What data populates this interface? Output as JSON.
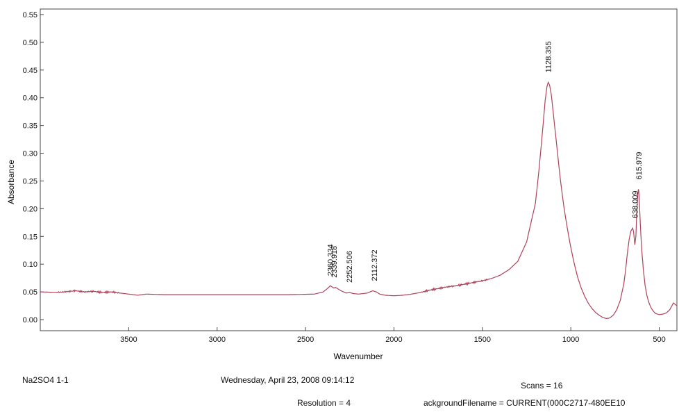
{
  "chart_data": {
    "type": "line",
    "title": "",
    "xlabel": "Wavenumber",
    "ylabel": "Absorbance",
    "xlim": [
      4000,
      400
    ],
    "ylim": [
      -0.02,
      0.56
    ],
    "x_ticks": [
      3500,
      3000,
      2500,
      2000,
      1500,
      1000,
      500
    ],
    "y_ticks": [
      "0.00",
      "0.05",
      "0.10",
      "0.15",
      "0.20",
      "0.25",
      "0.30",
      "0.35",
      "0.40",
      "0.45",
      "0.50",
      "0.55"
    ],
    "grid": false,
    "line_color": "#b0405a",
    "series": [
      {
        "x": [
          4000,
          3900,
          3800,
          3750,
          3700,
          3650,
          3600,
          3550,
          3500,
          3450,
          3400,
          3300,
          3200,
          3000,
          2800,
          2600,
          2450,
          2400,
          2380,
          2360,
          2340,
          2330,
          2300,
          2270,
          2252,
          2230,
          2200,
          2150,
          2120,
          2100,
          2080,
          2050,
          2000,
          1950,
          1900,
          1850,
          1800,
          1750,
          1700,
          1650,
          1600,
          1550,
          1500,
          1450,
          1400,
          1350,
          1300,
          1250,
          1200,
          1180,
          1160,
          1145,
          1135,
          1128,
          1120,
          1110,
          1100,
          1080,
          1060,
          1040,
          1020,
          1000,
          980,
          960,
          940,
          920,
          900,
          880,
          860,
          840,
          820,
          800,
          780,
          760,
          740,
          720,
          700,
          690,
          680,
          670,
          660,
          650,
          645,
          638,
          632,
          628,
          622,
          618,
          616,
          612,
          608,
          600,
          590,
          580,
          570,
          560,
          550,
          540,
          530,
          520,
          510,
          500,
          480,
          460,
          440,
          420,
          400
        ],
        "y": [
          0.05,
          0.049,
          0.052,
          0.05,
          0.051,
          0.049,
          0.05,
          0.048,
          0.046,
          0.044,
          0.046,
          0.045,
          0.045,
          0.045,
          0.045,
          0.045,
          0.046,
          0.05,
          0.055,
          0.061,
          0.057,
          0.058,
          0.052,
          0.048,
          0.049,
          0.047,
          0.046,
          0.048,
          0.052,
          0.05,
          0.046,
          0.044,
          0.043,
          0.044,
          0.046,
          0.049,
          0.053,
          0.056,
          0.059,
          0.061,
          0.064,
          0.067,
          0.07,
          0.074,
          0.08,
          0.09,
          0.105,
          0.14,
          0.21,
          0.27,
          0.34,
          0.395,
          0.42,
          0.428,
          0.423,
          0.405,
          0.375,
          0.315,
          0.255,
          0.205,
          0.165,
          0.13,
          0.1,
          0.075,
          0.056,
          0.041,
          0.029,
          0.02,
          0.013,
          0.008,
          0.004,
          0.002,
          0.003,
          0.008,
          0.018,
          0.035,
          0.065,
          0.09,
          0.12,
          0.145,
          0.16,
          0.165,
          0.158,
          0.135,
          0.15,
          0.185,
          0.225,
          0.235,
          0.232,
          0.21,
          0.18,
          0.13,
          0.09,
          0.062,
          0.044,
          0.032,
          0.024,
          0.018,
          0.014,
          0.011,
          0.01,
          0.009,
          0.01,
          0.012,
          0.018,
          0.03,
          0.025
        ]
      }
    ],
    "annotations": [
      {
        "label": "2360.334",
        "x": 2360.334,
        "y": 0.061
      },
      {
        "label": "2339.918",
        "x": 2339.918,
        "y": 0.058
      },
      {
        "label": "2252.506",
        "x": 2252.506,
        "y": 0.049
      },
      {
        "label": "2112.372",
        "x": 2112.372,
        "y": 0.052
      },
      {
        "label": "1128.355",
        "x": 1128.355,
        "y": 0.428
      },
      {
        "label": "638.009",
        "x": 638.009,
        "y": 0.165
      },
      {
        "label": "615.979",
        "x": 615.979,
        "y": 0.235
      }
    ]
  },
  "footer": {
    "sample": "Na2SO4 1-1",
    "date": "Wednesday, April 23, 2008 09:14:12",
    "scans": "Scans = 16",
    "resolution": "Resolution = 4",
    "background": "ackgroundFilename = CURRENT(000C2717-480EE10"
  }
}
